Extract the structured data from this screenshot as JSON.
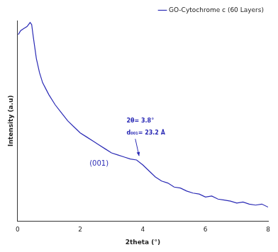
{
  "chart_data": {
    "type": "line",
    "x_label": "2theta (°)",
    "y_label": "Intensity (a.u)",
    "x": [
      0.02,
      0.1,
      0.2,
      0.3,
      0.4,
      0.45,
      0.5,
      0.6,
      0.7,
      0.8,
      0.9,
      1.0,
      1.2,
      1.4,
      1.6,
      1.8,
      2.0,
      2.2,
      2.4,
      2.6,
      2.8,
      3.0,
      3.2,
      3.4,
      3.6,
      3.8,
      4.0,
      4.2,
      4.4,
      4.6,
      4.8,
      5.0,
      5.2,
      5.4,
      5.6,
      5.8,
      6.0,
      6.2,
      6.4,
      6.6,
      6.8,
      7.0,
      7.2,
      7.4,
      7.6,
      7.8,
      8.0
    ],
    "series": [
      {
        "name": "GO-Cytochrome c (60 Layers)",
        "color": "#2a2ab5",
        "values": [
          93,
          95,
          96,
          97,
          99,
          98,
          92,
          81,
          74,
          69,
          66,
          63,
          58,
          54,
          50,
          47,
          44,
          42,
          40,
          38,
          36,
          34,
          33,
          32,
          31,
          30.5,
          28,
          25,
          22,
          20,
          19,
          17,
          16.5,
          15,
          14,
          13.5,
          12,
          12.5,
          11,
          10.5,
          10,
          9,
          9.5,
          8.5,
          8,
          8.5,
          7
        ]
      }
    ],
    "xlim": [
      0,
      8
    ],
    "xticks": [
      0,
      2,
      4,
      6,
      8
    ],
    "ylim": [
      0,
      100
    ],
    "tick_labels": "x",
    "grid": false,
    "legend": "top right",
    "annotations": [
      "(001)",
      "2θ= 3.8°",
      "d₀₀₁= 23.2 Å"
    ]
  }
}
